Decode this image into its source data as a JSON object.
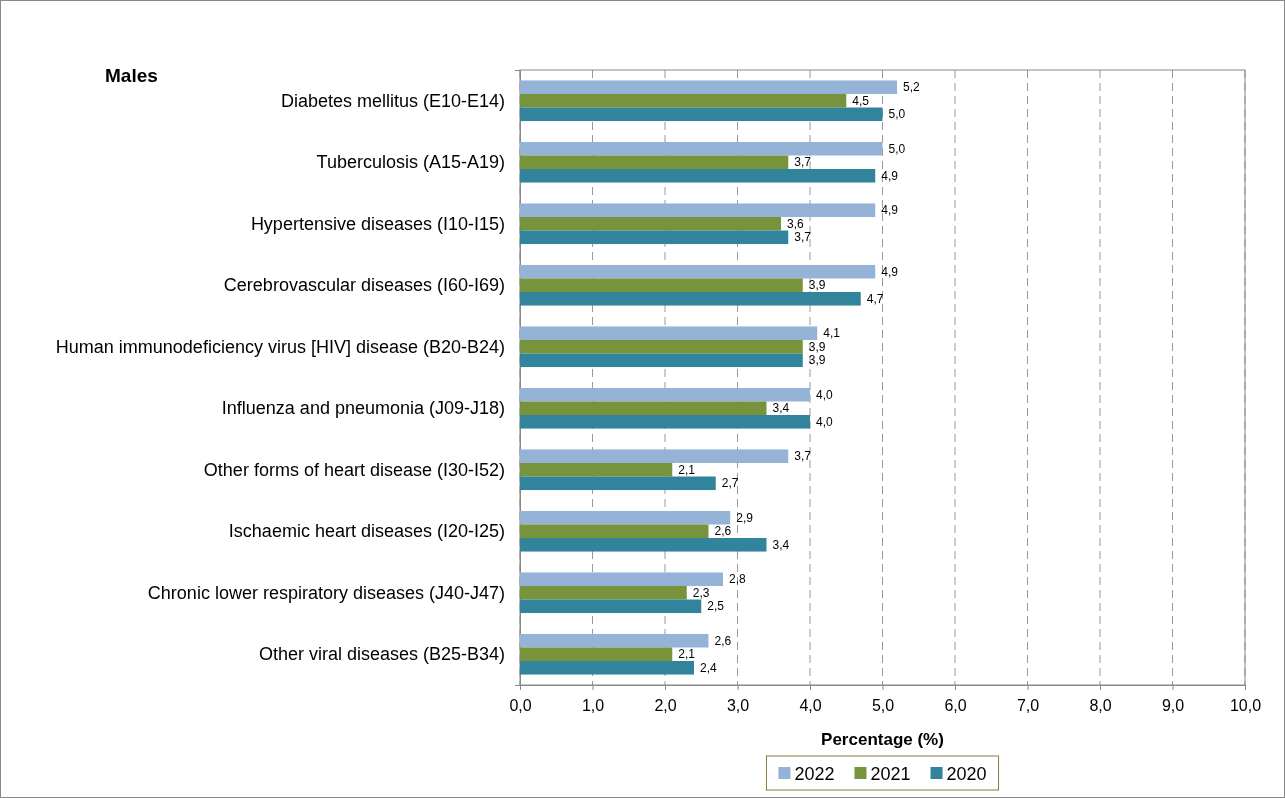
{
  "chart_data": {
    "type": "bar",
    "orientation": "horizontal",
    "title": "Males",
    "xlabel": "Percentage (%)",
    "categories": [
      "Diabetes mellitus (E10-E14)",
      "Tuberculosis (A15-A19)",
      "Hypertensive diseases (I10-I15)",
      "Cerebrovascular diseases (I60-I69)",
      "Human immunodeficiency virus [HIV] disease (B20-B24)",
      "Influenza and pneumonia (J09-J18)",
      "Other forms of heart disease (I30-I52)",
      "Ischaemic heart diseases (I20-I25)",
      "Chronic lower respiratory diseases (J40-J47)",
      "Other viral diseases (B25-B34)"
    ],
    "series": [
      {
        "name": "2022",
        "color": "#95b3d7",
        "values": [
          5.2,
          5.0,
          4.9,
          4.9,
          4.1,
          4.0,
          3.7,
          2.9,
          2.8,
          2.6
        ],
        "value_labels": [
          "5,2",
          "5,0",
          "4,9",
          "4,9",
          "4,1",
          "4,0",
          "3,7",
          "2,9",
          "2,8",
          "2,6"
        ]
      },
      {
        "name": "2021",
        "color": "#77933c",
        "values": [
          4.5,
          3.7,
          3.6,
          3.9,
          3.9,
          3.4,
          2.1,
          2.6,
          2.3,
          2.1
        ],
        "value_labels": [
          "4,5",
          "3,7",
          "3,6",
          "3,9",
          "3,9",
          "3,4",
          "2,1",
          "2,6",
          "2,3",
          "2,1"
        ]
      },
      {
        "name": "2020",
        "color": "#31849b",
        "values": [
          5.0,
          4.9,
          3.7,
          4.7,
          3.9,
          4.0,
          2.7,
          3.4,
          2.5,
          2.4
        ],
        "value_labels": [
          "5,0",
          "4,9",
          "3,7",
          "4,7",
          "3,9",
          "4,0",
          "2,7",
          "3,4",
          "2,5",
          "2,4"
        ]
      }
    ],
    "xlim": [
      0,
      10
    ],
    "xticks": [
      {
        "value": 0,
        "label": "0,0"
      },
      {
        "value": 1,
        "label": "1,0"
      },
      {
        "value": 2,
        "label": "2,0"
      },
      {
        "value": 3,
        "label": "3,0"
      },
      {
        "value": 4,
        "label": "4,0"
      },
      {
        "value": 5,
        "label": "5,0"
      },
      {
        "value": 6,
        "label": "6,0"
      },
      {
        "value": 7,
        "label": "7,0"
      },
      {
        "value": 8,
        "label": "8,0"
      },
      {
        "value": 9,
        "label": "9,0"
      },
      {
        "value": 10,
        "label": "10,0"
      }
    ],
    "grid": "x",
    "legend": "bottom"
  }
}
